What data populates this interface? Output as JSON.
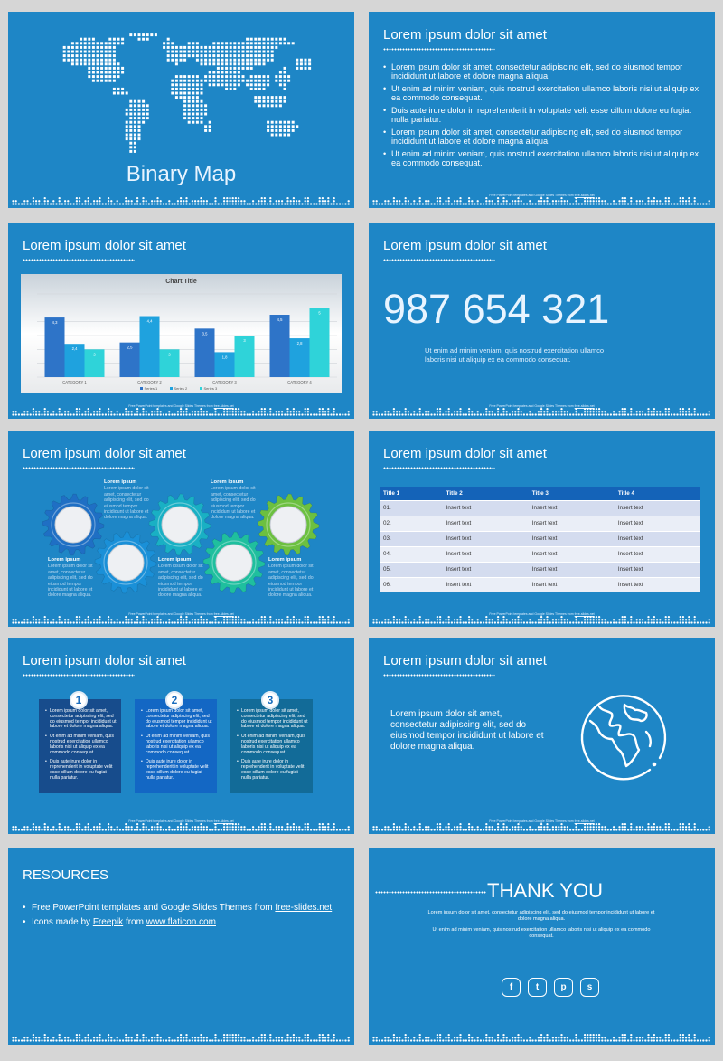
{
  "slide1": {
    "title": "Binary Map"
  },
  "slide2": {
    "title": "Lorem ipsum dolor sit amet",
    "bullets": [
      "Lorem ipsum dolor sit amet, consectetur adipiscing elit, sed do eiusmod tempor incididunt ut labore et dolore magna aliqua.",
      "Ut enim ad minim veniam, quis nostrud exercitation ullamco laboris nisi ut aliquip ex ea commodo consequat.",
      "Duis aute irure dolor in reprehenderit in voluptate velit esse cillum dolore eu fugiat nulla pariatur.",
      "Lorem ipsum dolor sit amet, consectetur adipiscing elit, sed do eiusmod tempor incididunt ut labore et dolore magna aliqua.",
      "Ut enim ad minim veniam, quis nostrud exercitation ullamco laboris nisi ut aliquip ex ea commodo consequat."
    ]
  },
  "slide3": {
    "title": "Lorem ipsum dolor sit amet"
  },
  "chart_data": {
    "type": "bar",
    "title": "Chart Title",
    "categories": [
      "CATEGORY 1",
      "CATEGORY 2",
      "CATEGORY 3",
      "CATEGORY 4"
    ],
    "series": [
      {
        "name": "Series 1",
        "values": [
          4.3,
          2.5,
          3.5,
          4.5
        ],
        "color": "#2e74c8"
      },
      {
        "name": "Series 2",
        "values": [
          2.4,
          4.4,
          1.8,
          2.8
        ],
        "color": "#1fa2de"
      },
      {
        "name": "Series 3",
        "values": [
          2,
          2,
          3,
          5
        ],
        "color": "#2fd3d9"
      }
    ],
    "ylim": [
      0,
      6
    ],
    "grid": true,
    "legend": "bottom"
  },
  "slide4": {
    "title": "Lorem ipsum dolor sit amet",
    "number": "987 654 321",
    "text": "Ut enim ad minim veniam, quis nostrud exercitation ullamco laboris nisi ut aliquip ex ea commodo consequat."
  },
  "slide5": {
    "title": "Lorem ipsum dolor sit amet",
    "labels": [
      {
        "heading": "Lorem ipsum",
        "text": "Lorem ipsum dolor sit amet, consectetur adipiscing elit, sed do eiusmod tempor incididunt ut labore et dolore magna aliqua."
      },
      {
        "heading": "Lorem ipsum",
        "text": "Lorem ipsum dolor sit amet, consectetur adipiscing elit, sed do eiusmod tempor incididunt ut labore et dolore magna aliqua."
      },
      {
        "heading": "Lorem ipsum",
        "text": "Lorem ipsum dolor sit amet, consectetur adipiscing elit, sed do eiusmod tempor incididunt ut labore et dolore magna aliqua."
      },
      {
        "heading": "Lorem ipsum",
        "text": "Lorem ipsum dolor sit amet, consectetur adipiscing elit, sed do eiusmod tempor incididunt ut labore et dolore magna aliqua."
      },
      {
        "heading": "Lorem ipsum",
        "text": "Lorem ipsum dolor sit amet, consectetur adipiscing elit, sed do eiusmod tempor incididunt ut labore et dolore magna aliqua."
      }
    ],
    "gear_colors": [
      "#1f6fc4",
      "#1a90d8",
      "#19b0c4",
      "#1fbf9e",
      "#6cc040"
    ]
  },
  "slide6": {
    "title": "Lorem ipsum dolor sit amet",
    "headers": [
      "Title 1",
      "Title 2",
      "Title 3",
      "Title 4"
    ],
    "rows": [
      [
        "01.",
        "Insert text",
        "Insert text",
        "Insert text"
      ],
      [
        "02.",
        "Insert text",
        "Insert text",
        "Insert text"
      ],
      [
        "03.",
        "Insert text",
        "Insert text",
        "Insert text"
      ],
      [
        "04.",
        "Insert text",
        "Insert text",
        "Insert text"
      ],
      [
        "05.",
        "Insert text",
        "Insert text",
        "Insert text"
      ],
      [
        "06.",
        "Insert text",
        "Insert text",
        "Insert text"
      ]
    ]
  },
  "slide7": {
    "title": "Lorem ipsum dolor sit amet",
    "steps": [
      {
        "num": "1",
        "color": "#174c8c",
        "items": [
          "Lorem ipsum dolor sit amet, consectetur adipiscing elit, sed do eiusmod tempor incididunt ut labore et dolore magna aliqua.",
          "Ut enim ad minim veniam, quis nostrud exercitation ullamco laboris nisi ut aliquip ex ea commodo consequat.",
          "Duis aute irure dolor in reprehenderit in voluptate velit esse cillum dolore eu fugiat nulla pariatur."
        ]
      },
      {
        "num": "2",
        "color": "#1367c4",
        "items": [
          "Lorem ipsum dolor sit amet, consectetur adipiscing elit, sed do eiusmod tempor incididunt ut labore et dolore magna aliqua.",
          "Ut enim ad minim veniam, quis nostrud exercitation ullamco laboris nisi ut aliquip ex ea commodo consequat.",
          "Duis aute irure dolor in reprehenderit in voluptate velit esse cillum dolore eu fugiat nulla pariatur."
        ]
      },
      {
        "num": "3",
        "color": "#126b98",
        "items": [
          "Lorem ipsum dolor sit amet, consectetur adipiscing elit, sed do eiusmod tempor incididunt ut labore et dolore magna aliqua.",
          "Ut enim ad minim veniam, quis nostrud exercitation ullamco laboris nisi ut aliquip ex ea commodo consequat.",
          "Duis aute irure dolor in reprehenderit in voluptate velit esse cillum dolore eu fugiat nulla pariatur."
        ]
      }
    ]
  },
  "slide8": {
    "title": "Lorem ipsum dolor sit amet",
    "text": "Lorem ipsum dolor sit amet, consectetur adipiscing elit, sed do eiusmod tempor incididunt ut labore et dolore magna aliqua.",
    "icon": "globe-icon"
  },
  "slide9": {
    "title": "RESOURCES",
    "item1_text": "Free PowerPoint templates and Google Slides Themes from ",
    "item1_link": "free-slides.net",
    "item2_text": "Icons made by ",
    "item2_link1": "Freepik",
    "item2_mid": " from ",
    "item2_link2": "www.flaticon.com"
  },
  "slide10": {
    "title": "THANK YOU",
    "text1": "Lorem ipsum dolor sit amet, consectetur adipiscing elit, sed do eiusmod tempor incididunt ut labore et dolore magna aliqua.",
    "text2": "Ut enim ad minim veniam, quis nostrud exercitation ullamco laboris nisi ut aliquip ex ea commodo consequat.",
    "social": [
      {
        "glyph": "f",
        "icon": "facebook-icon"
      },
      {
        "glyph": "t",
        "icon": "twitter-icon"
      },
      {
        "glyph": "p",
        "icon": "pinterest-icon"
      },
      {
        "glyph": "s",
        "icon": "skype-icon"
      }
    ]
  },
  "footer": {
    "text": "Free PowerPoint templates and Google Slides Themes from ",
    "link": "free-slides.net"
  },
  "colors": {
    "background": "#d6d6d6",
    "slide": "#1e86c6",
    "table_header": "#1463b8"
  }
}
